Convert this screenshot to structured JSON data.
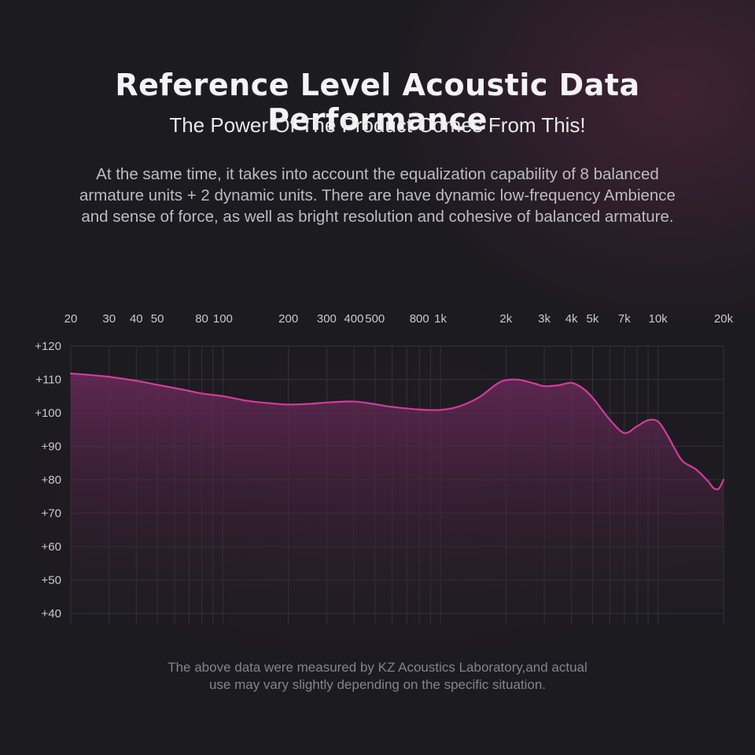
{
  "header": {
    "title": "Reference Level Acoustic Data Performance",
    "subtitle": "The Power Of The Product Comes From This!"
  },
  "description": {
    "lines": [
      "At the same time, it takes into account the equalization capability of 8 balanced",
      "armature units + 2 dynamic units. There are have dynamic low-frequency Ambience",
      "and sense of force, as well as bright resolution and cohesive of balanced armature."
    ]
  },
  "footnote": {
    "lines": [
      "The above data were measured by KZ Acoustics Laboratory,and actual",
      "use may vary slightly depending on the specific situation."
    ]
  },
  "colors": {
    "curve": "#d23c9c",
    "fill_top": "#6b2a5a",
    "grid": "#34333a",
    "tick_label": "#c9c8ce"
  },
  "chart_data": {
    "type": "area",
    "title": "",
    "xlabel": "",
    "ylabel": "",
    "xscale": "log",
    "xlim": [
      20,
      20000
    ],
    "ylim": [
      40,
      120
    ],
    "x_ticks": [
      {
        "value": 20,
        "label": "20"
      },
      {
        "value": 30,
        "label": "30"
      },
      {
        "value": 40,
        "label": "40"
      },
      {
        "value": 50,
        "label": "50"
      },
      {
        "value": 80,
        "label": "80"
      },
      {
        "value": 100,
        "label": "100"
      },
      {
        "value": 200,
        "label": "200"
      },
      {
        "value": 300,
        "label": "300"
      },
      {
        "value": 400,
        "label": "400"
      },
      {
        "value": 500,
        "label": "500"
      },
      {
        "value": 800,
        "label": "800"
      },
      {
        "value": 1000,
        "label": "1k"
      },
      {
        "value": 2000,
        "label": "2k"
      },
      {
        "value": 3000,
        "label": "3k"
      },
      {
        "value": 4000,
        "label": "4k"
      },
      {
        "value": 5000,
        "label": "5k"
      },
      {
        "value": 7000,
        "label": "7k"
      },
      {
        "value": 10000,
        "label": "10k"
      },
      {
        "value": 20000,
        "label": "20k"
      }
    ],
    "y_ticks": [
      {
        "value": 120,
        "label": "+120"
      },
      {
        "value": 110,
        "label": "+110"
      },
      {
        "value": 100,
        "label": "+100"
      },
      {
        "value": 90,
        "label": "+90"
      },
      {
        "value": 80,
        "label": "+80"
      },
      {
        "value": 70,
        "label": "+70"
      },
      {
        "value": 60,
        "label": "+60"
      },
      {
        "value": 50,
        "label": "+50"
      },
      {
        "value": 40,
        "label": "+40"
      }
    ],
    "grid": true,
    "series": [
      {
        "x": [
          20,
          25,
          30,
          40,
          50,
          65,
          80,
          100,
          130,
          170,
          200,
          250,
          300,
          400,
          500,
          600,
          800,
          1000,
          1200,
          1500,
          1800,
          2000,
          2300,
          2700,
          3000,
          3500,
          4000,
          4500,
          5000,
          6000,
          7000,
          8000,
          9000,
          10000,
          11000,
          12000,
          13000,
          15000,
          17000,
          18000,
          19000,
          20000
        ],
        "values": [
          111.8,
          111.3,
          110.8,
          109.6,
          108.4,
          107.0,
          105.8,
          105.0,
          103.6,
          102.8,
          102.5,
          102.7,
          103.1,
          103.4,
          102.6,
          101.8,
          101.0,
          100.9,
          101.8,
          104.6,
          108.5,
          109.8,
          109.9,
          108.8,
          108.0,
          108.3,
          109.0,
          107.4,
          104.6,
          98.0,
          94.0,
          96.0,
          97.8,
          97.4,
          93.5,
          89.0,
          85.5,
          83.0,
          79.5,
          77.5,
          77.3,
          80.0
        ]
      }
    ]
  }
}
